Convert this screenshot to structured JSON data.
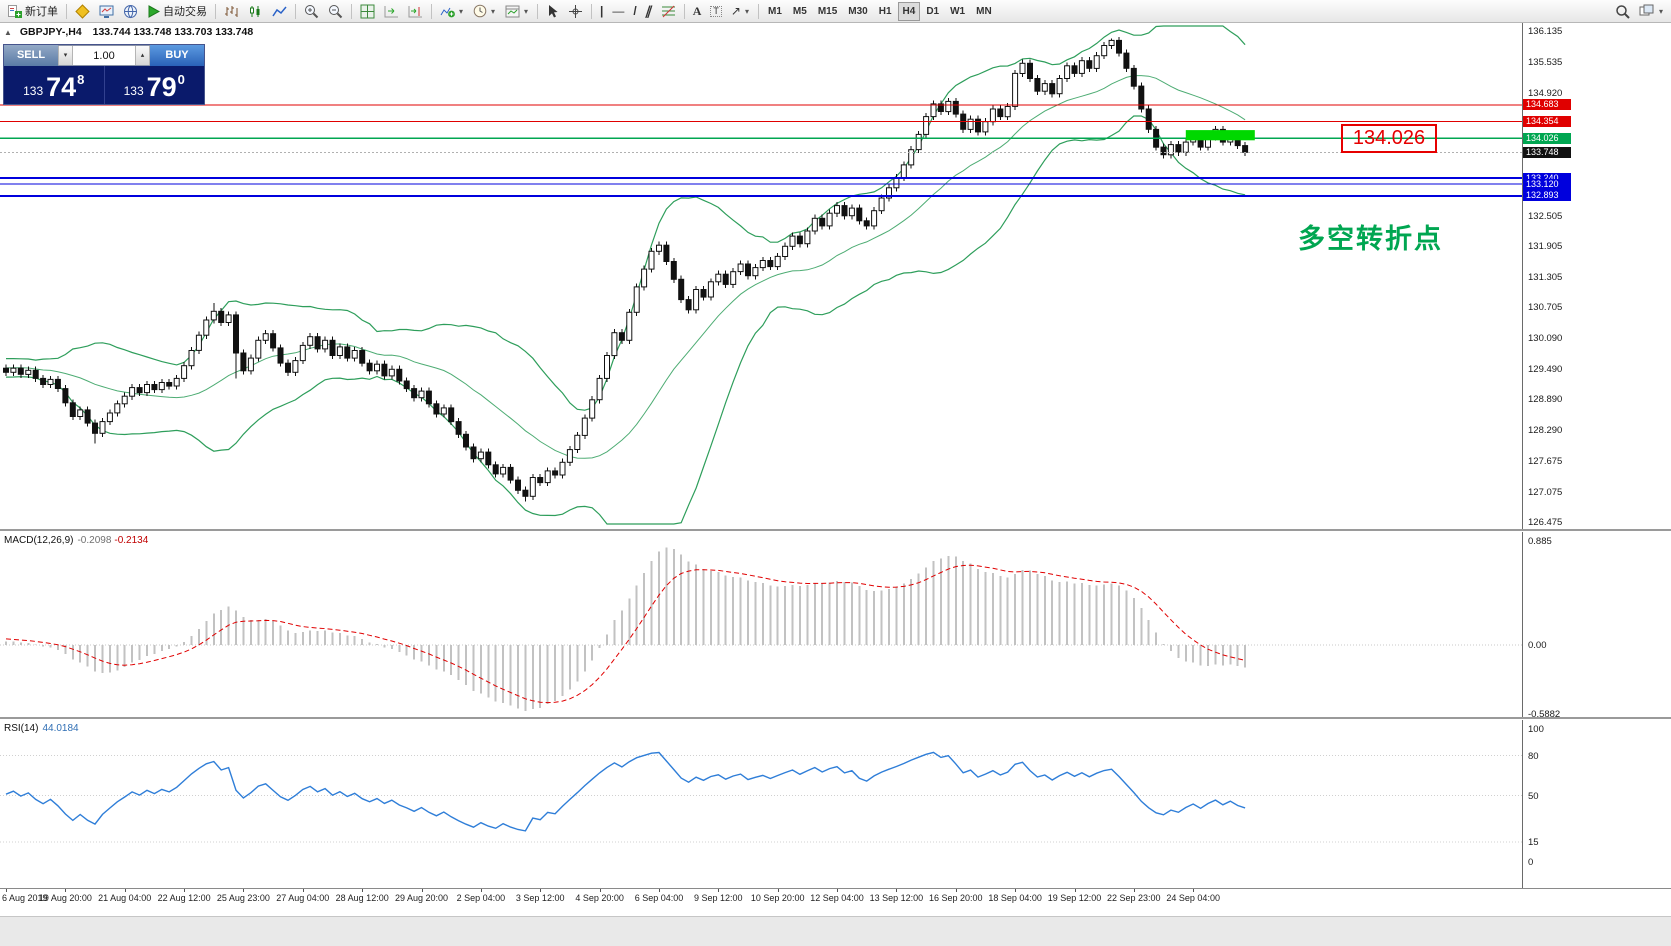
{
  "toolbar": {
    "new_order_label": "新订单",
    "auto_trading_label": "自动交易",
    "timeframes": [
      "M1",
      "M5",
      "M15",
      "M30",
      "H1",
      "H4",
      "D1",
      "W1",
      "MN"
    ],
    "active_timeframe": "H4"
  },
  "chart": {
    "symbol_label": "GBPJPY-,H4",
    "ohlc": "133.744 133.748 133.703 133.748",
    "trade_panel": {
      "sell_label": "SELL",
      "buy_label": "BUY",
      "volume": "1.00",
      "sell_price_prefix": "133",
      "sell_price_main": "74",
      "sell_price_sup": "8",
      "buy_price_prefix": "133",
      "buy_price_main": "79",
      "buy_price_sup": "0"
    },
    "levels": [
      {
        "price": 134.683,
        "label": "134.683",
        "color": "#e00000",
        "width": 1
      },
      {
        "price": 134.354,
        "label": "134.354",
        "color": "#e00000",
        "width": 1
      },
      {
        "price": 134.026,
        "label": "134.026",
        "color": "#00a651",
        "width": 1.6
      },
      {
        "price": 133.24,
        "label": "133.240",
        "color": "#0000dd",
        "width": 2
      },
      {
        "price": 133.12,
        "label": "133.120",
        "color": "#0000dd",
        "width": 1
      },
      {
        "price": 132.893,
        "label": "132.893",
        "color": "#0000dd",
        "width": 2
      }
    ],
    "current_price": {
      "value": 133.748,
      "label": "133.748",
      "tag_color": "#111111"
    },
    "highlight": {
      "from_idx": 159,
      "to_idx": 168.3,
      "price_top": 134.185,
      "price_bottom": 133.985,
      "color": "#00d800"
    },
    "annotations": {
      "price_note": "134.026",
      "price_note_color": "#e60000",
      "cn_note": "多空转折点",
      "cn_note_color": "#00a651"
    },
    "y_ticks": [
      "136.135",
      "135.535",
      "134.920",
      "132.505",
      "131.905",
      "131.305",
      "130.705",
      "130.090",
      "129.490",
      "128.890",
      "128.290",
      "127.675",
      "127.075",
      "126.475"
    ]
  },
  "macd": {
    "label": "MACD(12,26,9)",
    "value": "-0.2098",
    "signal": "-0.2134",
    "scale": [
      "0.885",
      "0.00",
      "-0.5882"
    ]
  },
  "rsi": {
    "label": "RSI(14)",
    "value": "44.0184",
    "levels": [
      "100",
      "80",
      "50",
      "15",
      "0"
    ],
    "level_lines": [
      80,
      50,
      15
    ]
  },
  "time_axis": [
    "6 Aug 2019",
    "19 Aug 20:00",
    "21 Aug 04:00",
    "22 Aug 12:00",
    "25 Aug 23:00",
    "27 Aug 04:00",
    "28 Aug 12:00",
    "29 Aug 20:00",
    "2 Sep 04:00",
    "3 Sep 12:00",
    "4 Sep 20:00",
    "6 Sep 04:00",
    "9 Sep 12:00",
    "10 Sep 20:00",
    "12 Sep 04:00",
    "13 Sep 12:00",
    "16 Sep 20:00",
    "18 Sep 04:00",
    "19 Sep 12:00",
    "22 Sep 23:00",
    "24 Sep 04:00"
  ],
  "chart_data": {
    "type": "candlestick",
    "symbol": "GBPJPY-",
    "timeframe": "H4",
    "ohlc_current": {
      "open": 133.744,
      "high": 133.748,
      "low": 133.703,
      "close": 133.748
    },
    "price_axis": {
      "top_value": 136.135,
      "bottom_value": 126.475
    },
    "first_open": 129.5,
    "default_wick": 0.07,
    "wick_overrides": {
      "12": {
        "low": 128.02
      },
      "28": {
        "high": 130.78
      },
      "31": {
        "low": 129.3
      },
      "70": {
        "low": 126.88
      },
      "149": {
        "high": 135.99
      }
    },
    "pre_closes": [
      129.1,
      129.25,
      129.4,
      129.3,
      129.5,
      129.35,
      129.2,
      129.38,
      129.52,
      129.42,
      129.6,
      129.48,
      129.35,
      129.55,
      129.7,
      129.58,
      129.45,
      129.62,
      129.5,
      129.4,
      129.55,
      129.65,
      129.52,
      129.38,
      129.48,
      129.6,
      129.45,
      129.55,
      129.42,
      129.5
    ],
    "closes": [
      129.42,
      129.5,
      129.38,
      129.46,
      129.3,
      129.18,
      129.28,
      129.1,
      128.82,
      128.55,
      128.68,
      128.42,
      128.22,
      128.45,
      128.62,
      128.8,
      128.95,
      129.12,
      129.02,
      129.18,
      129.08,
      129.22,
      129.15,
      129.3,
      129.55,
      129.85,
      130.15,
      130.45,
      130.62,
      130.4,
      130.55,
      129.8,
      129.45,
      129.7,
      130.05,
      130.18,
      129.9,
      129.6,
      129.42,
      129.65,
      129.95,
      130.12,
      129.88,
      130.05,
      129.75,
      129.92,
      129.7,
      129.85,
      129.6,
      129.45,
      129.58,
      129.35,
      129.48,
      129.25,
      129.1,
      128.92,
      129.05,
      128.8,
      128.6,
      128.72,
      128.45,
      128.2,
      127.95,
      127.72,
      127.85,
      127.6,
      127.42,
      127.55,
      127.3,
      127.1,
      126.98,
      127.35,
      127.25,
      127.48,
      127.4,
      127.65,
      127.9,
      128.18,
      128.52,
      128.88,
      129.3,
      129.75,
      130.2,
      130.05,
      130.6,
      131.1,
      131.45,
      131.8,
      131.92,
      131.6,
      131.25,
      130.85,
      130.65,
      131.05,
      130.9,
      131.2,
      131.35,
      131.15,
      131.4,
      131.55,
      131.32,
      131.48,
      131.62,
      131.5,
      131.7,
      131.9,
      132.1,
      131.95,
      132.2,
      132.45,
      132.3,
      132.55,
      132.7,
      132.5,
      132.65,
      132.4,
      132.3,
      132.6,
      132.85,
      133.05,
      133.25,
      133.5,
      133.8,
      134.1,
      134.45,
      134.7,
      134.55,
      134.75,
      134.5,
      134.2,
      134.4,
      134.15,
      134.35,
      134.6,
      134.45,
      134.65,
      135.3,
      135.5,
      135.2,
      134.95,
      135.1,
      134.9,
      135.2,
      135.45,
      135.3,
      135.55,
      135.4,
      135.65,
      135.85,
      135.95,
      135.7,
      135.4,
      135.05,
      134.6,
      134.2,
      133.85,
      133.7,
      133.9,
      133.75,
      133.95,
      134.1,
      133.85,
      134.05,
      134.2,
      133.95,
      134.1,
      133.88,
      133.748
    ],
    "bollinger_period": 20,
    "bollinger_dev": 2,
    "macd_params": [
      12,
      26,
      9
    ],
    "rsi_period": 14
  }
}
